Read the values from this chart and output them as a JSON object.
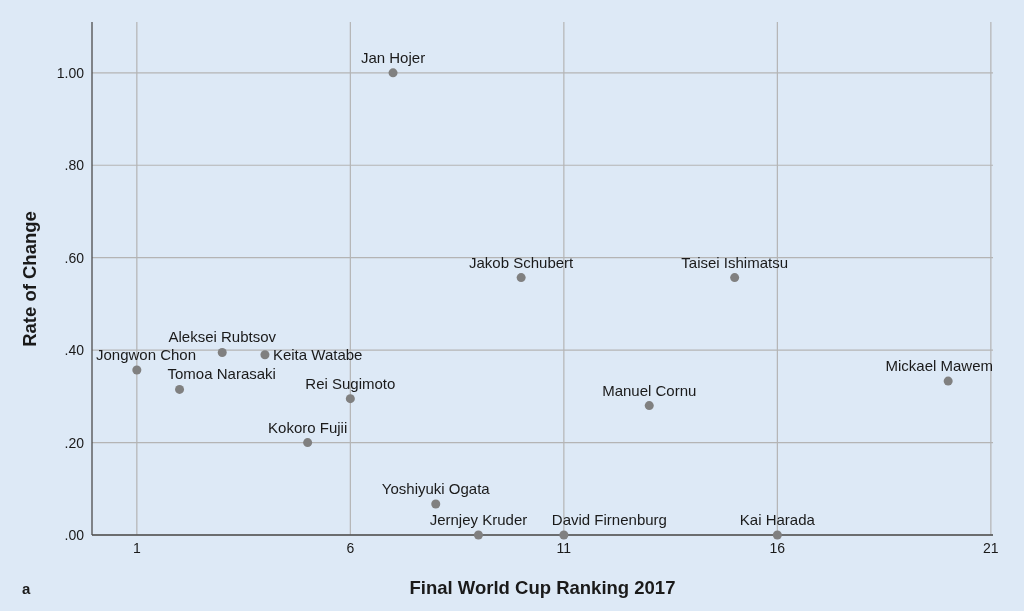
{
  "chart_data": {
    "type": "scatter",
    "xlabel": "Final World Cup Ranking 2017",
    "ylabel": "Rate of Change",
    "x": [
      1,
      2,
      3,
      4,
      5,
      6,
      7,
      8,
      9,
      10,
      11,
      13,
      15,
      16,
      20
    ],
    "values": [
      0.357,
      0.315,
      0.395,
      0.39,
      0.2,
      0.295,
      1.0,
      0.067,
      0,
      0.557,
      0,
      0.28,
      0.557,
      0,
      0.333
    ],
    "color": "#808080",
    "marker": "circle",
    "xlim": [
      -0.05,
      21.05
    ],
    "ylim": [
      0,
      1.11
    ],
    "xticks": [
      1,
      6,
      11,
      16,
      21
    ],
    "yticks": [
      {
        "value": 0,
        "label": ".00"
      },
      {
        "value": 0.2,
        "label": ".20"
      },
      {
        "value": 0.4,
        "label": ".40"
      },
      {
        "value": 0.6,
        "label": ".60"
      },
      {
        "value": 0.8,
        "label": ".80"
      },
      {
        "value": 1,
        "label": "1.00"
      }
    ],
    "grid": true,
    "annotations": [
      {
        "text": "Jongwon Chon",
        "x": 1,
        "y": 0.357
      },
      {
        "text": "Tomoa Narasaki",
        "x": 2,
        "y": 0.315
      },
      {
        "text": "Aleksei Rubtsov",
        "x": 3,
        "y": 0.395
      },
      {
        "text": "Keita Watabe",
        "x": 4,
        "y": 0.39
      },
      {
        "text": "Kokoro Fujii",
        "x": 5,
        "y": 0.2
      },
      {
        "text": "Rei Sugimoto",
        "x": 6,
        "y": 0.295
      },
      {
        "text": "Jan Hojer",
        "x": 7,
        "y": 1.0
      },
      {
        "text": "Yoshiyuki Ogata",
        "x": 8,
        "y": 0.067
      },
      {
        "text": "Jernjey Kruder",
        "x": 9,
        "y": 0
      },
      {
        "text": "Jakob Schubert",
        "x": 10,
        "y": 0.557
      },
      {
        "text": "David Firnenburg",
        "x": 11,
        "y": 0
      },
      {
        "text": "Manuel Cornu",
        "x": 13,
        "y": 0.28
      },
      {
        "text": "Taisei Ishimatsu",
        "x": 15,
        "y": 0.557
      },
      {
        "text": "Kai Harada",
        "x": 16,
        "y": 0
      },
      {
        "text": "Mickael Mawem",
        "x": 20,
        "y": 0.333
      },
      "a"
    ]
  }
}
